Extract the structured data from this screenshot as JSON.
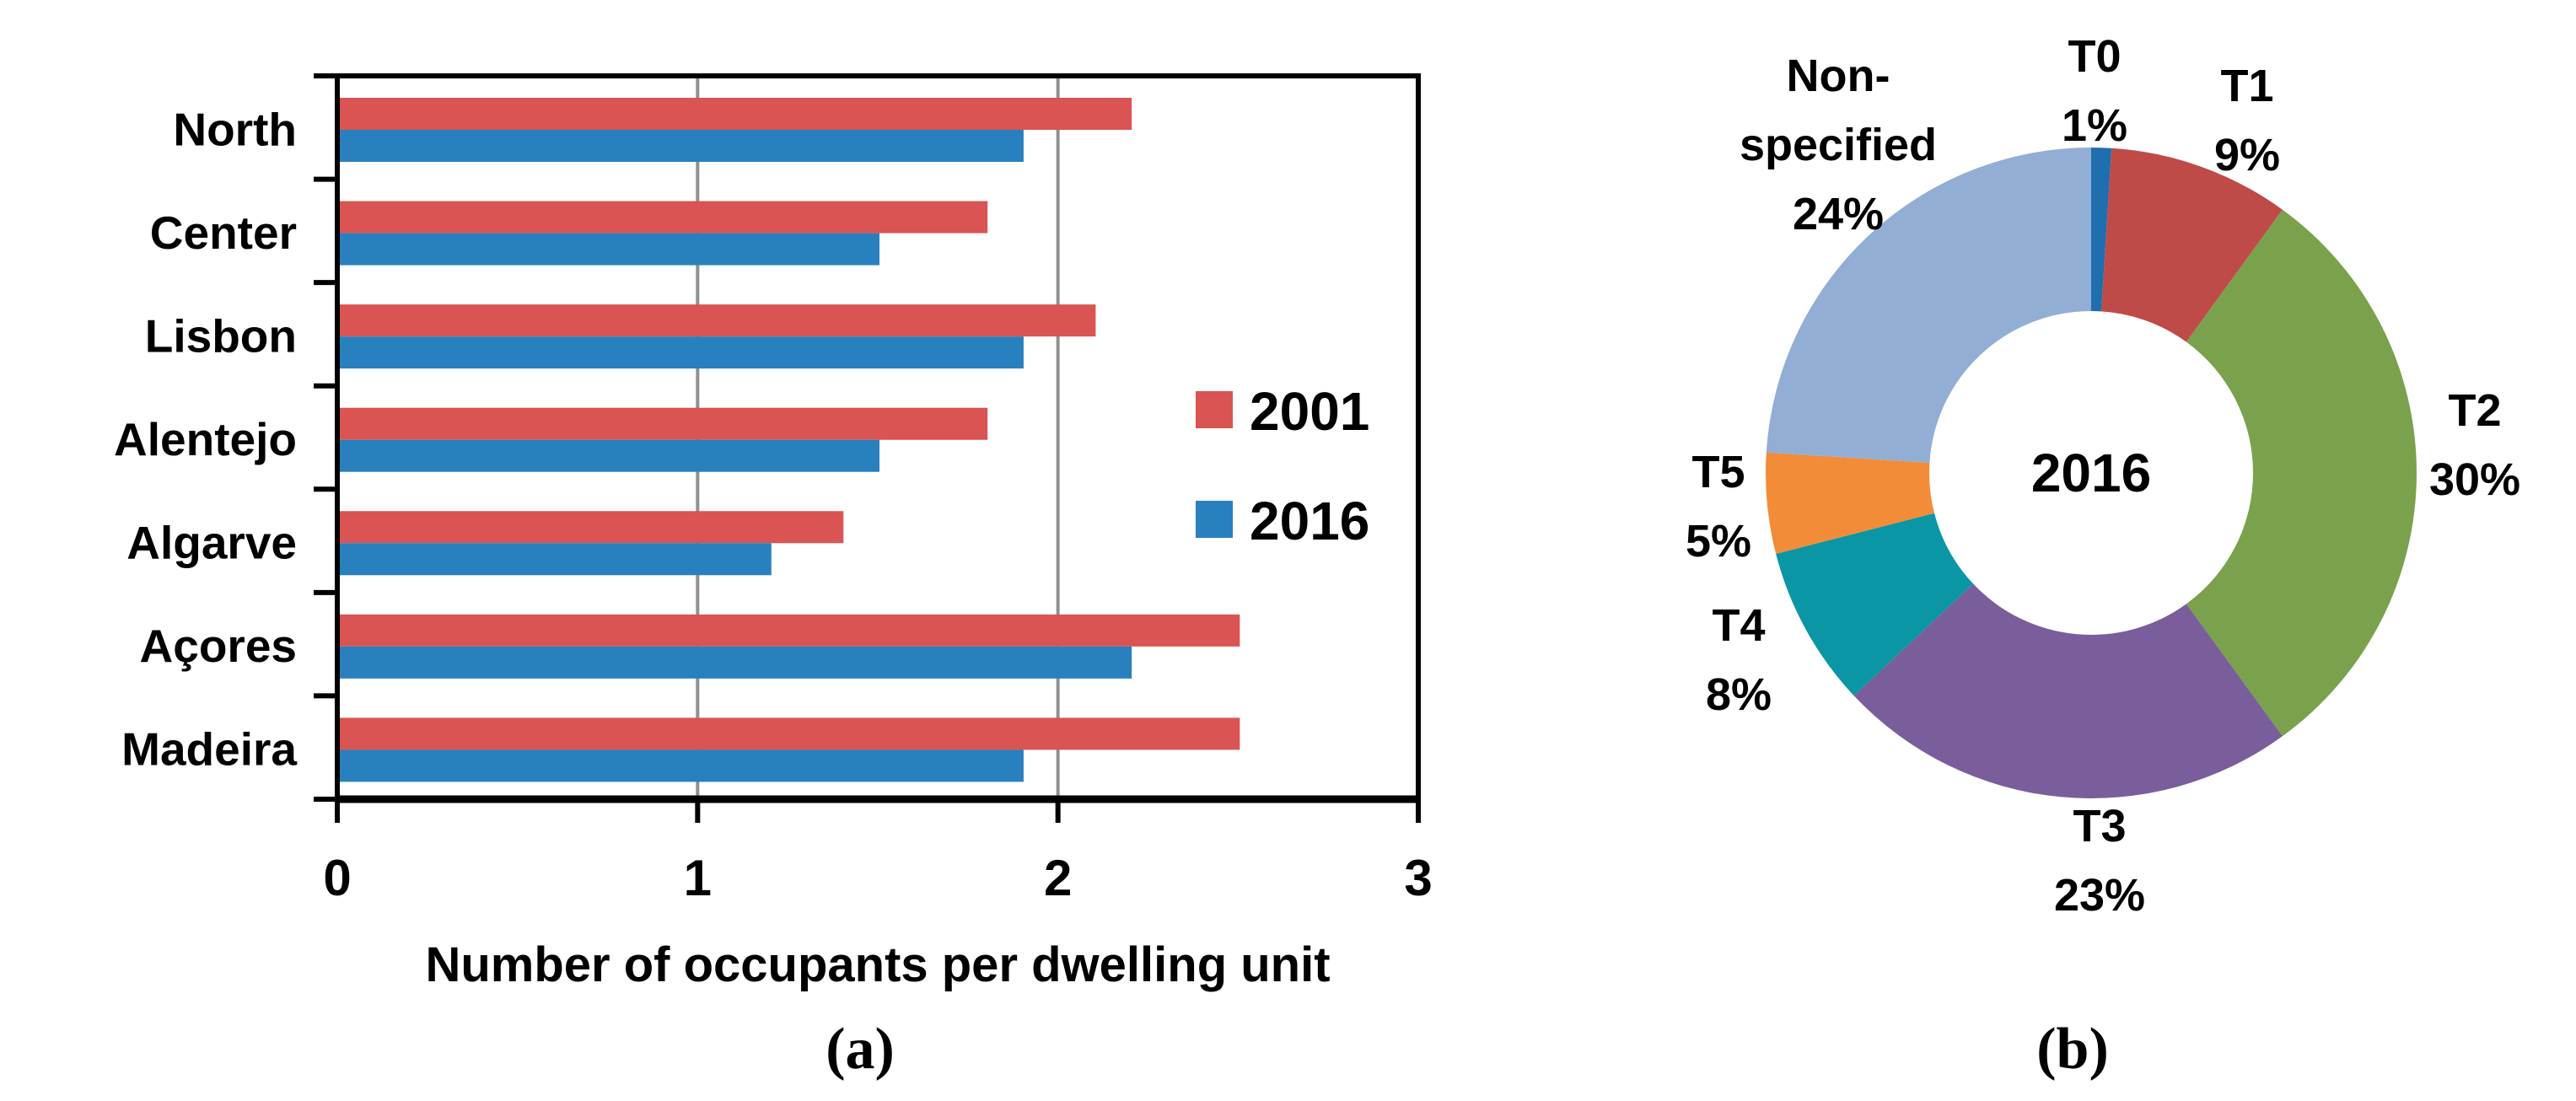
{
  "figure": {
    "caption_a": "(a)",
    "caption_b": "(b)"
  },
  "chart_data": [
    {
      "id": "occupants-bar-chart",
      "type": "bar",
      "orientation": "horizontal",
      "xlabel": "Number of occupants per dwelling unit",
      "xlim": [
        0,
        3
      ],
      "xticks": [
        "0",
        "1",
        "2",
        "3"
      ],
      "grid": "vertical-gridlines-at-1-and-2",
      "gridline_color": "#909090",
      "legend_position": "inside-right",
      "categories": [
        "North",
        "Center",
        "Lisbon",
        "Alentejo",
        "Algarve",
        "Açores",
        "Madeira"
      ],
      "series": [
        {
          "name": "2001",
          "color": "#D95452",
          "values": [
            2.2,
            1.8,
            2.1,
            1.8,
            1.4,
            2.5,
            2.5
          ]
        },
        {
          "name": "2016",
          "color": "#2980BE",
          "values": [
            1.9,
            1.5,
            1.9,
            1.5,
            1.2,
            2.2,
            1.9
          ]
        }
      ]
    },
    {
      "id": "typology-donut-chart",
      "type": "pie",
      "subtype": "donut",
      "center_label": "2016",
      "start_angle_deg": 0,
      "direction": "clockwise",
      "slices": [
        {
          "label": "T0",
          "pct": 1,
          "color": "#1F6EAE"
        },
        {
          "label": "T1",
          "pct": 9,
          "color": "#BF4B48"
        },
        {
          "label": "T2",
          "pct": 30,
          "color": "#7AA24C"
        },
        {
          "label": "T3",
          "pct": 23,
          "color": "#7A5E9B"
        },
        {
          "label": "T4",
          "pct": 8,
          "color": "#0B96A5"
        },
        {
          "label": "T5",
          "pct": 5,
          "color": "#F28C38"
        },
        {
          "label": "Non-specified",
          "pct": 24,
          "color": "#92AED5",
          "label_lines": [
            "Non-",
            "specified"
          ]
        }
      ]
    }
  ]
}
